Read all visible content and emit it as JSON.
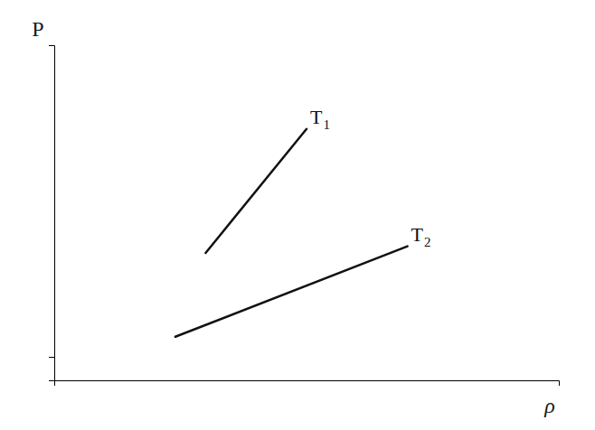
{
  "chart_data": {
    "type": "line",
    "xlabel": "ρ",
    "ylabel": "P",
    "xlim": [
      0,
      1
    ],
    "ylim": [
      0,
      1
    ],
    "xticks": [],
    "yticks": [
      0.07
    ],
    "tick_labels": false,
    "grid": false,
    "series": [
      {
        "x": [
          0.3,
          0.5
        ],
        "values": [
          0.38,
          0.75
        ],
        "color": "#111111",
        "annotation": "T",
        "annotation_sub": "1"
      },
      {
        "x": [
          0.24,
          0.7
        ],
        "values": [
          0.13,
          0.4
        ],
        "color": "#111111",
        "annotation": "T",
        "annotation_sub": "2"
      }
    ]
  }
}
